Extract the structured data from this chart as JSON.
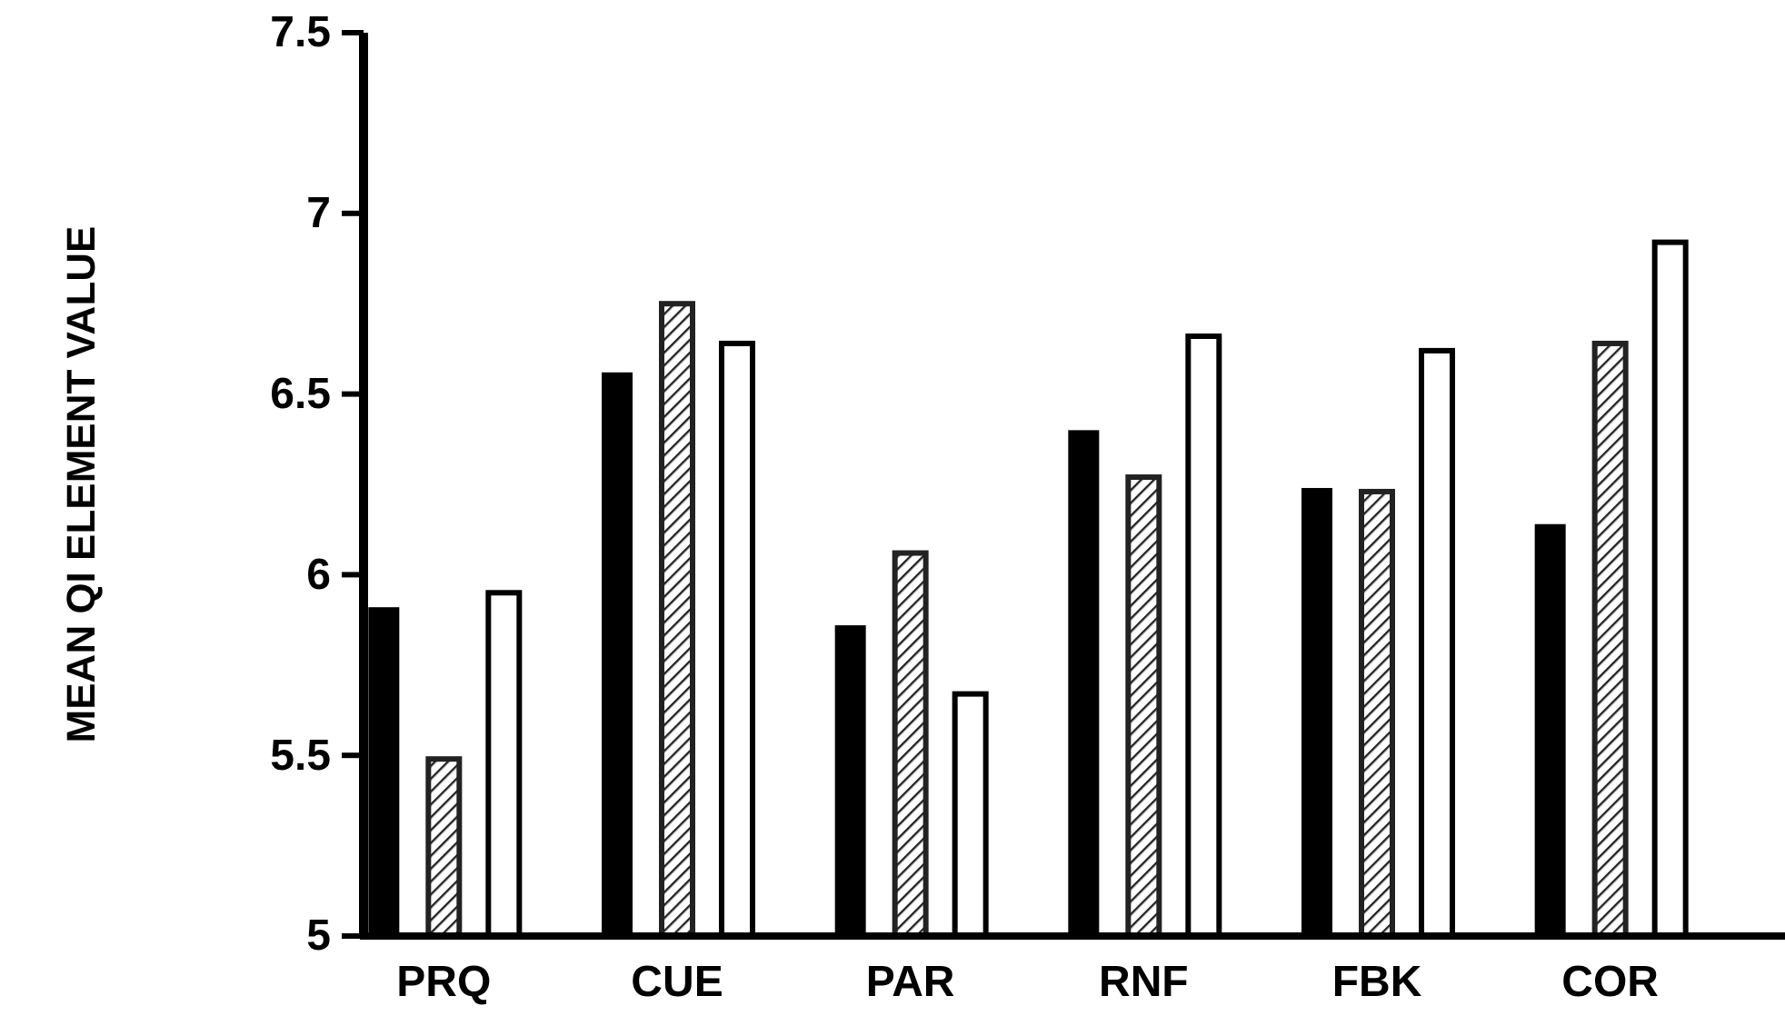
{
  "chart_data": {
    "type": "bar",
    "ylabel": "MEAN QI ELEMENT VALUE",
    "categories": [
      "PRQ",
      "CUE",
      "PAR",
      "RNF",
      "FBK",
      "COR"
    ],
    "series": [
      {
        "color": "#000000",
        "values": [
          5.91,
          6.56,
          5.86,
          6.4,
          6.24,
          6.14
        ]
      },
      {
        "color": "#222222",
        "values": [
          5.49,
          6.75,
          6.06,
          6.27,
          6.23,
          6.64
        ]
      },
      {
        "color": "#ffffff",
        "values": [
          5.95,
          6.64,
          5.67,
          6.66,
          6.62,
          6.92
        ]
      }
    ],
    "ylim": [
      5,
      7.5
    ],
    "yticks": [
      5,
      5.5,
      6,
      6.5,
      7,
      7.5
    ],
    "grid": false
  }
}
